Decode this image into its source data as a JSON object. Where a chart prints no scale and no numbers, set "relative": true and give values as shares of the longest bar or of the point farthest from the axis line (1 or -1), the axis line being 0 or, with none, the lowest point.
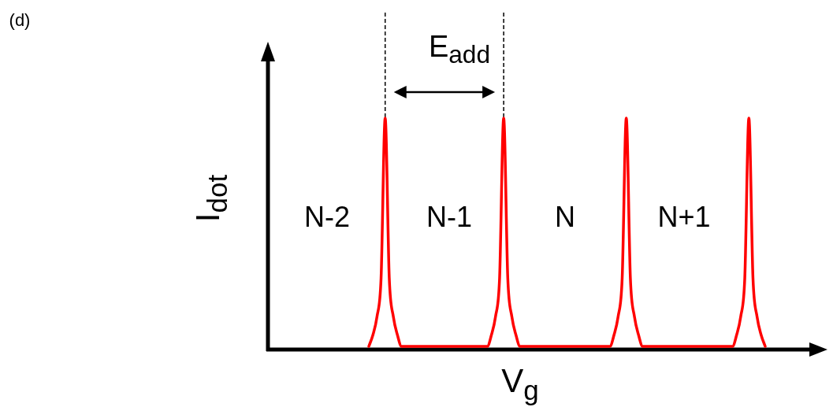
{
  "chart_data": {
    "type": "line",
    "relative": true,
    "marker": "none",
    "xlabel": "V$_{g}$",
    "ylabel": "I$_{dot}$",
    "annotations": [
      "(d)",
      "N-2",
      "N-1",
      "N",
      "N+1",
      "E$_{add}$"
    ],
    "categories": [
      null,
      null,
      null,
      null,
      null,
      null,
      null,
      null,
      null,
      null,
      null,
      null,
      null,
      null,
      null,
      null,
      null,
      null,
      null,
      null,
      null,
      null,
      null,
      null,
      null,
      null,
      null,
      null,
      null,
      null,
      null,
      null,
      null,
      null,
      null,
      null,
      null,
      null,
      null,
      null,
      null,
      null,
      null,
      null,
      null,
      null,
      null,
      null,
      null,
      null,
      null,
      null,
      null,
      null,
      null,
      null,
      null,
      null,
      null,
      null,
      null,
      null,
      null,
      null,
      null,
      null,
      null,
      null,
      null,
      null,
      null,
      null,
      null,
      null,
      null,
      null,
      null,
      null,
      null,
      null,
      null,
      null,
      null,
      null,
      null,
      null,
      null,
      null,
      null,
      null,
      null,
      null,
      null,
      null,
      null,
      null,
      null,
      null
    ],
    "series": [
      {
        "color": "#ff0000",
        "values": [
          0,
          0.05,
          0.13,
          0.3,
          1,
          0.3,
          0.13,
          0.05,
          0,
          0,
          0,
          0,
          0,
          0,
          0,
          0,
          0,
          0,
          0,
          0,
          0,
          0,
          0,
          0,
          0,
          0,
          0,
          0,
          0,
          0,
          0.05,
          0.13,
          0.3,
          1,
          0.3,
          0.13,
          0.05,
          0,
          0,
          0,
          0,
          0,
          0,
          0,
          0,
          0,
          0,
          0,
          0,
          0,
          0,
          0,
          0,
          0,
          0,
          0,
          0,
          0,
          0,
          0,
          0.05,
          0.13,
          0.3,
          1,
          0.3,
          0.13,
          0.05,
          0,
          0,
          0,
          0,
          0,
          0,
          0,
          0,
          0,
          0,
          0,
          0,
          0,
          0,
          0,
          0,
          0,
          0,
          0,
          0,
          0,
          0,
          0,
          0.05,
          0.13,
          0.3,
          1,
          0.3,
          0.13,
          0.05,
          0
        ]
      }
    ]
  }
}
